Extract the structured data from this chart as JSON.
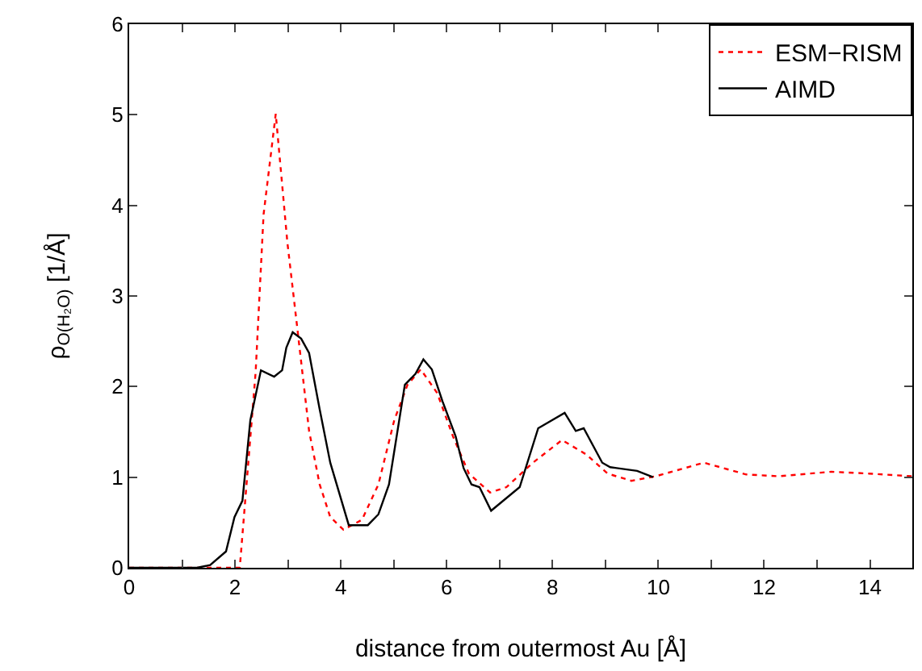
{
  "chart_data": {
    "type": "line",
    "xlabel": "distance from outermost Au [Å]",
    "ylabel": "ρ$_{O(H₂O)}$ [1/Å]",
    "xlim": [
      0,
      14.8
    ],
    "ylim": [
      0,
      6
    ],
    "xticks": [
      0,
      {
        "value": 1,
        "label": null
      },
      2,
      {
        "value": 3,
        "label": null
      },
      4,
      {
        "value": 5,
        "label": null
      },
      6,
      {
        "value": 7,
        "label": null
      },
      8,
      {
        "value": 9,
        "label": null
      },
      10,
      {
        "value": 11,
        "label": null
      },
      12,
      {
        "value": 13,
        "label": null
      },
      14
    ],
    "yticks": [
      0,
      1,
      2,
      3,
      4,
      5,
      6
    ],
    "grid": false,
    "legend": "top right",
    "marker": "none",
    "series": [
      {
        "name": "ESM−RISM",
        "color": "#ff0000",
        "line_style": "dotted",
        "x": [
          0,
          2.09,
          2.39,
          2.54,
          2.77,
          2.99,
          3.19,
          3.4,
          3.6,
          3.8,
          4.05,
          4.4,
          4.71,
          5.01,
          5.26,
          5.51,
          5.82,
          6.12,
          6.42,
          6.82,
          7.13,
          7.63,
          8.18,
          8.64,
          9.04,
          9.49,
          9.95,
          10.86,
          11.66,
          12.27,
          13.27,
          13.98,
          14.8
        ],
        "values": [
          0,
          0,
          2.16,
          3.9,
          5.01,
          3.59,
          2.58,
          1.51,
          0.92,
          0.56,
          0.42,
          0.53,
          0.92,
          1.63,
          2.02,
          2.19,
          1.93,
          1.45,
          1.04,
          0.83,
          0.89,
          1.16,
          1.41,
          1.25,
          1.04,
          0.96,
          1.01,
          1.16,
          1.03,
          1.01,
          1.06,
          1.04,
          1.01
        ]
      },
      {
        "name": "AIMD",
        "color": "#000000",
        "line_style": "solid",
        "x": [
          0,
          1.28,
          1.53,
          1.83,
          1.99,
          2.14,
          2.29,
          2.49,
          2.74,
          2.89,
          2.97,
          3.09,
          3.25,
          3.4,
          3.6,
          3.8,
          4.15,
          4.51,
          4.71,
          4.91,
          5.21,
          5.41,
          5.56,
          5.72,
          5.92,
          6.17,
          6.32,
          6.47,
          6.62,
          6.84,
          7.38,
          7.73,
          8.23,
          8.44,
          8.59,
          8.94,
          9.09,
          9.6,
          9.9
        ],
        "values": [
          0,
          0,
          0.03,
          0.18,
          0.56,
          0.74,
          1.63,
          2.18,
          2.11,
          2.18,
          2.43,
          2.6,
          2.53,
          2.37,
          1.75,
          1.16,
          0.47,
          0.47,
          0.59,
          0.92,
          2.02,
          2.14,
          2.3,
          2.19,
          1.84,
          1.45,
          1.1,
          0.92,
          0.89,
          0.63,
          0.89,
          1.54,
          1.71,
          1.51,
          1.54,
          1.16,
          1.11,
          1.07,
          1.0
        ]
      }
    ]
  }
}
